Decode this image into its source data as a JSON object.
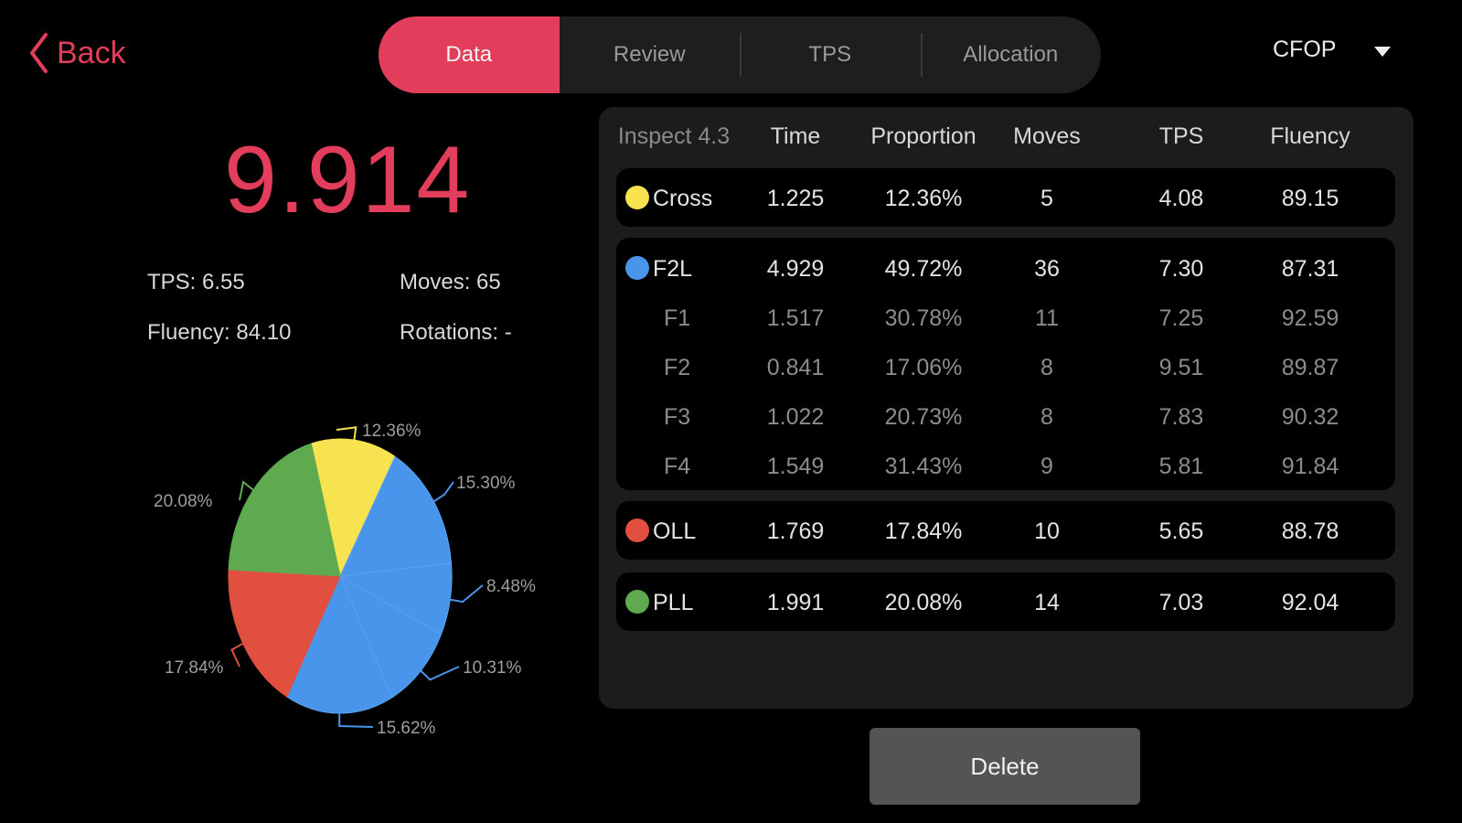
{
  "nav": {
    "back_label": "Back"
  },
  "tabs": [
    {
      "label": "Data",
      "active": true
    },
    {
      "label": "Review",
      "active": false
    },
    {
      "label": "TPS",
      "active": false
    },
    {
      "label": "Allocation",
      "active": false
    }
  ],
  "method_select": {
    "value": "CFOP"
  },
  "summary": {
    "time": "9.914",
    "tps": "TPS: 6.55",
    "moves": "Moves: 65",
    "fluency": "Fluency: 84.10",
    "rotations": "Rotations: -"
  },
  "pie": {
    "labels": {
      "cross": "12.36%",
      "f1": "15.30%",
      "f2": "8.48%",
      "f3": "10.31%",
      "f4": "15.62%",
      "oll": "17.84%",
      "pll": "20.08%"
    }
  },
  "chart_data": {
    "type": "pie",
    "slices": [
      {
        "label": "12.36%",
        "value": 12.36,
        "color": "#f7e24f"
      },
      {
        "label": "15.30%",
        "value": 15.3,
        "color": "#4a95ec"
      },
      {
        "label": "8.48%",
        "value": 8.48,
        "color": "#4a95ec"
      },
      {
        "label": "10.31%",
        "value": 10.31,
        "color": "#4a95ec"
      },
      {
        "label": "15.62%",
        "value": 15.62,
        "color": "#4a95ec"
      },
      {
        "label": "17.84%",
        "value": 17.84,
        "color": "#e14f3f"
      },
      {
        "label": "20.08%",
        "value": 20.08,
        "color": "#5faa4f"
      }
    ]
  },
  "table": {
    "headers": {
      "inspect": "Inspect 4.3",
      "time": "Time",
      "proportion": "Proportion",
      "moves": "Moves",
      "tps": "TPS",
      "fluency": "Fluency"
    },
    "cross": {
      "name": "Cross",
      "time": "1.225",
      "proportion": "12.36%",
      "moves": "5",
      "tps": "4.08",
      "fluency": "89.15"
    },
    "f2l": {
      "name": "F2L",
      "time": "4.929",
      "proportion": "49.72%",
      "moves": "36",
      "tps": "7.30",
      "fluency": "87.31"
    },
    "f1": {
      "name": "F1",
      "time": "1.517",
      "proportion": "30.78%",
      "moves": "11",
      "tps": "7.25",
      "fluency": "92.59"
    },
    "f2": {
      "name": "F2",
      "time": "0.841",
      "proportion": "17.06%",
      "moves": "8",
      "tps": "9.51",
      "fluency": "89.87"
    },
    "f3": {
      "name": "F3",
      "time": "1.022",
      "proportion": "20.73%",
      "moves": "8",
      "tps": "7.83",
      "fluency": "90.32"
    },
    "f4": {
      "name": "F4",
      "time": "1.549",
      "proportion": "31.43%",
      "moves": "9",
      "tps": "5.81",
      "fluency": "91.84"
    },
    "oll": {
      "name": "OLL",
      "time": "1.769",
      "proportion": "17.84%",
      "moves": "10",
      "tps": "5.65",
      "fluency": "88.78"
    },
    "pll": {
      "name": "PLL",
      "time": "1.991",
      "proportion": "20.08%",
      "moves": "14",
      "tps": "7.03",
      "fluency": "92.04"
    }
  },
  "colors": {
    "accent": "#e23d5a",
    "cross": "#f7e24f",
    "f2l": "#4a95ec",
    "oll": "#e14f3f",
    "pll": "#5faa4f"
  },
  "actions": {
    "delete_label": "Delete"
  }
}
